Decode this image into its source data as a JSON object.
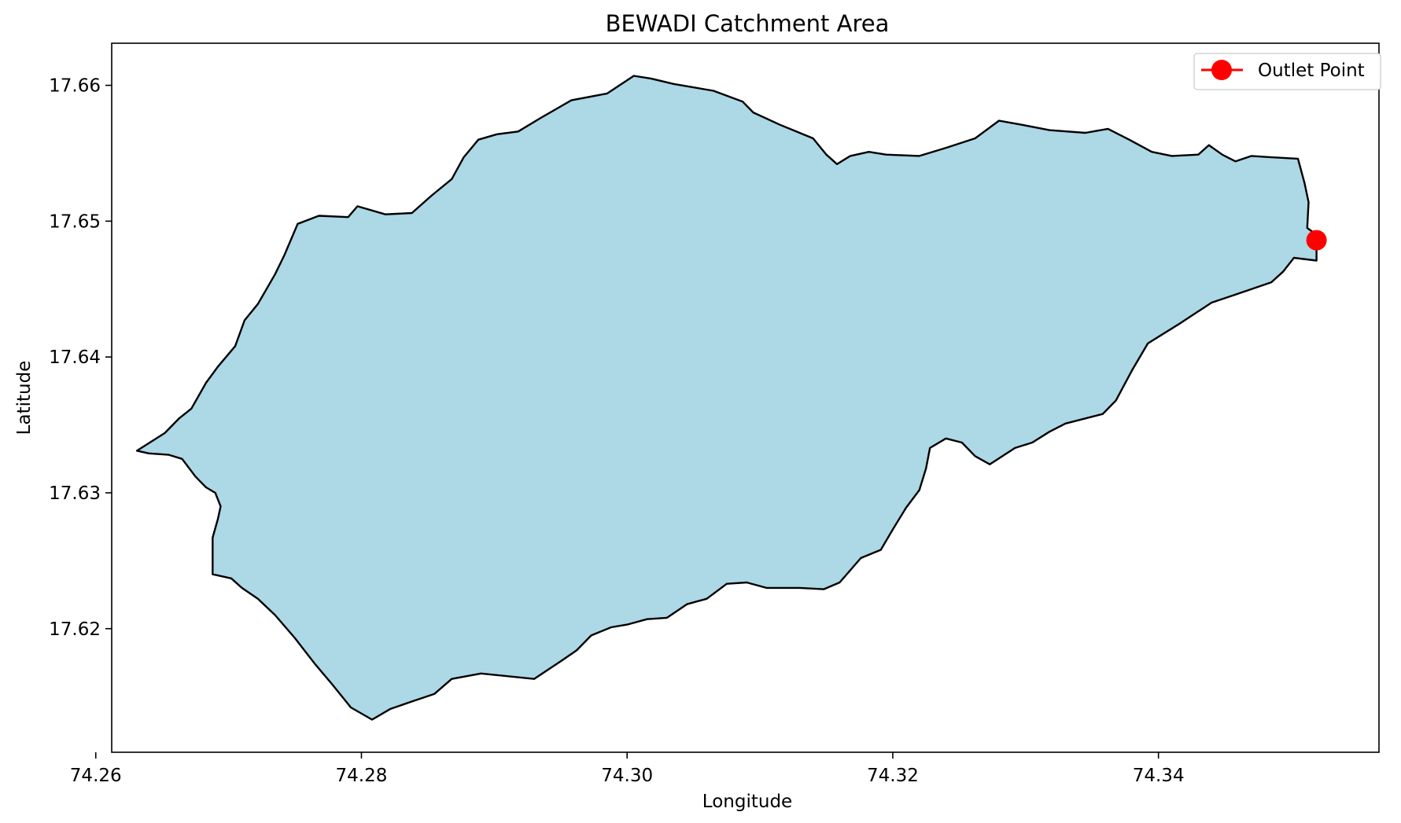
{
  "chart_data": {
    "type": "map",
    "title": "BEWADI Catchment Area",
    "xlabel": "Longitude",
    "ylabel": "Latitude",
    "xlim": [
      74.2612,
      74.3566
    ],
    "ylim": [
      17.6109,
      17.6631
    ],
    "xticks": [
      74.26,
      74.28,
      74.3,
      74.32,
      74.34
    ],
    "xtick_labels": [
      "74.26",
      "74.28",
      "74.30",
      "74.32",
      "74.34"
    ],
    "yticks": [
      17.62,
      17.63,
      17.64,
      17.65,
      17.66
    ],
    "ytick_labels": [
      "17.62",
      "17.63",
      "17.64",
      "17.65",
      "17.66"
    ],
    "grid": false,
    "legend": {
      "position": "top-right",
      "entries": [
        {
          "label": "Outlet Point",
          "color": "#ff0000",
          "marker": "circle"
        }
      ]
    },
    "catchment": {
      "fill_color": "#add8e6",
      "edge_color": "#000000",
      "boundary": [
        [
          74.2631,
          17.6331
        ],
        [
          74.2652,
          17.6344
        ],
        [
          74.2663,
          17.6355
        ],
        [
          74.2672,
          17.6362
        ],
        [
          74.2683,
          17.6381
        ],
        [
          74.2692,
          17.6393
        ],
        [
          74.2705,
          17.6408
        ],
        [
          74.2712,
          17.6427
        ],
        [
          74.2722,
          17.6439
        ],
        [
          74.2735,
          17.6461
        ],
        [
          74.2742,
          17.6475
        ],
        [
          74.2752,
          17.6498
        ],
        [
          74.2768,
          17.6504
        ],
        [
          74.279,
          17.6503
        ],
        [
          74.2797,
          17.6511
        ],
        [
          74.2818,
          17.6505
        ],
        [
          74.2838,
          17.6506
        ],
        [
          74.2853,
          17.6519
        ],
        [
          74.2868,
          17.6531
        ],
        [
          74.2877,
          17.6547
        ],
        [
          74.2888,
          17.656
        ],
        [
          74.2902,
          17.6564
        ],
        [
          74.2918,
          17.6566
        ],
        [
          74.2935,
          17.6576
        ],
        [
          74.2958,
          17.6589
        ],
        [
          74.2985,
          17.6594
        ],
        [
          74.3005,
          17.6607
        ],
        [
          74.3018,
          17.6605
        ],
        [
          74.3035,
          17.6601
        ],
        [
          74.3065,
          17.6596
        ],
        [
          74.3087,
          17.6588
        ],
        [
          74.3095,
          17.658
        ],
        [
          74.3115,
          17.6571
        ],
        [
          74.314,
          17.6561
        ],
        [
          74.315,
          17.6549
        ],
        [
          74.3158,
          17.6542
        ],
        [
          74.3168,
          17.6548
        ],
        [
          74.3182,
          17.6551
        ],
        [
          74.3195,
          17.6549
        ],
        [
          74.322,
          17.6548
        ],
        [
          74.324,
          17.6554
        ],
        [
          74.3262,
          17.6561
        ],
        [
          74.328,
          17.6574
        ],
        [
          74.3297,
          17.6571
        ],
        [
          74.3318,
          17.6567
        ],
        [
          74.3345,
          17.6565
        ],
        [
          74.3362,
          17.6568
        ],
        [
          74.3378,
          17.656
        ],
        [
          74.3395,
          17.6551
        ],
        [
          74.341,
          17.6548
        ],
        [
          74.343,
          17.6549
        ],
        [
          74.3438,
          17.6556
        ],
        [
          74.3448,
          17.6549
        ],
        [
          74.3458,
          17.6544
        ],
        [
          74.347,
          17.6548
        ],
        [
          74.3485,
          17.6547
        ],
        [
          74.3505,
          17.6546
        ],
        [
          74.351,
          17.6528
        ],
        [
          74.3513,
          17.6514
        ],
        [
          74.3512,
          17.6495
        ],
        [
          74.3519,
          17.649
        ],
        [
          74.3519,
          17.6471
        ],
        [
          74.3502,
          17.6473
        ],
        [
          74.3494,
          17.6463
        ],
        [
          74.3485,
          17.6455
        ],
        [
          74.3458,
          17.6446
        ],
        [
          74.344,
          17.644
        ],
        [
          74.3415,
          17.6424
        ],
        [
          74.3392,
          17.641
        ],
        [
          74.338,
          17.639
        ],
        [
          74.3368,
          17.6368
        ],
        [
          74.3358,
          17.6358
        ],
        [
          74.333,
          17.6351
        ],
        [
          74.3318,
          17.6345
        ],
        [
          74.3305,
          17.6337
        ],
        [
          74.3292,
          17.6333
        ],
        [
          74.3273,
          17.6321
        ],
        [
          74.3262,
          17.6327
        ],
        [
          74.3252,
          17.6337
        ],
        [
          74.324,
          17.634
        ],
        [
          74.3228,
          17.6333
        ],
        [
          74.3225,
          17.6318
        ],
        [
          74.322,
          17.6302
        ],
        [
          74.321,
          17.6289
        ],
        [
          74.32,
          17.6273
        ],
        [
          74.3191,
          17.6258
        ],
        [
          74.3176,
          17.6252
        ],
        [
          74.316,
          17.6234
        ],
        [
          74.3148,
          17.6229
        ],
        [
          74.313,
          17.623
        ],
        [
          74.3105,
          17.623
        ],
        [
          74.309,
          17.6234
        ],
        [
          74.3075,
          17.6233
        ],
        [
          74.306,
          17.6222
        ],
        [
          74.3045,
          17.6218
        ],
        [
          74.303,
          17.6208
        ],
        [
          74.3015,
          17.6207
        ],
        [
          74.3,
          17.6203
        ],
        [
          74.2988,
          17.6201
        ],
        [
          74.2973,
          17.6195
        ],
        [
          74.2962,
          17.6184
        ],
        [
          74.295,
          17.6176
        ],
        [
          74.293,
          17.6163
        ],
        [
          74.289,
          17.6167
        ],
        [
          74.2868,
          17.6163
        ],
        [
          74.2855,
          17.6152
        ],
        [
          74.284,
          17.6147
        ],
        [
          74.2822,
          17.6141
        ],
        [
          74.2808,
          17.6133
        ],
        [
          74.2792,
          17.6142
        ],
        [
          74.2778,
          17.6159
        ],
        [
          74.2765,
          17.6174
        ],
        [
          74.275,
          17.6193
        ],
        [
          74.2735,
          17.621
        ],
        [
          74.2722,
          17.6222
        ],
        [
          74.271,
          17.623
        ],
        [
          74.2702,
          17.6237
        ],
        [
          74.2688,
          17.624
        ],
        [
          74.2688,
          17.6267
        ],
        [
          74.2692,
          17.6281
        ],
        [
          74.2694,
          17.629
        ],
        [
          74.269,
          17.63
        ],
        [
          74.2683,
          17.6304
        ],
        [
          74.2675,
          17.6312
        ],
        [
          74.2665,
          17.6325
        ],
        [
          74.2655,
          17.6328
        ],
        [
          74.264,
          17.6329
        ]
      ]
    },
    "outlet": {
      "label": "Outlet Point",
      "lon": 74.3519,
      "lat": 17.6486,
      "color": "#ff0000"
    }
  }
}
